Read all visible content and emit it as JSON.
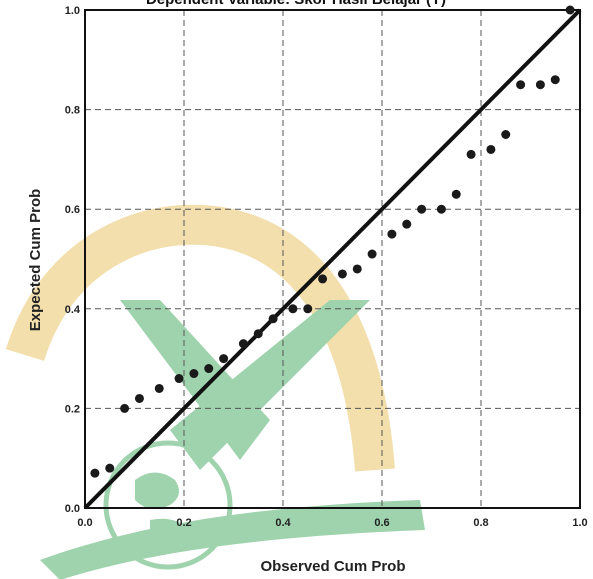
{
  "chart_data": {
    "type": "scatter",
    "title": "Dependent Variable: Skor Hasil Belajar (Y)",
    "xlabel": "Observed Cum Prob",
    "ylabel": "Expected Cum Prob",
    "xlim": [
      0,
      1
    ],
    "ylim": [
      0,
      1
    ],
    "x_ticks": [
      "0.0",
      "0.2",
      "0.4",
      "0.6",
      "0.8",
      "1.0"
    ],
    "y_ticks": [
      "0.0",
      "0.2",
      "0.4",
      "0.6",
      "0.8",
      "1.0"
    ],
    "grid": true,
    "reference_line": [
      [
        0,
        0
      ],
      [
        1,
        1
      ]
    ],
    "points": [
      [
        0.02,
        0.07
      ],
      [
        0.05,
        0.08
      ],
      [
        0.08,
        0.2
      ],
      [
        0.11,
        0.22
      ],
      [
        0.15,
        0.24
      ],
      [
        0.19,
        0.26
      ],
      [
        0.22,
        0.27
      ],
      [
        0.25,
        0.28
      ],
      [
        0.28,
        0.3
      ],
      [
        0.32,
        0.33
      ],
      [
        0.35,
        0.35
      ],
      [
        0.38,
        0.38
      ],
      [
        0.42,
        0.4
      ],
      [
        0.45,
        0.4
      ],
      [
        0.48,
        0.46
      ],
      [
        0.52,
        0.47
      ],
      [
        0.55,
        0.48
      ],
      [
        0.58,
        0.51
      ],
      [
        0.62,
        0.55
      ],
      [
        0.65,
        0.57
      ],
      [
        0.68,
        0.6
      ],
      [
        0.72,
        0.6
      ],
      [
        0.75,
        0.63
      ],
      [
        0.78,
        0.71
      ],
      [
        0.82,
        0.72
      ],
      [
        0.85,
        0.75
      ],
      [
        0.88,
        0.85
      ],
      [
        0.92,
        0.85
      ],
      [
        0.95,
        0.86
      ],
      [
        0.98,
        1.0
      ]
    ]
  }
}
